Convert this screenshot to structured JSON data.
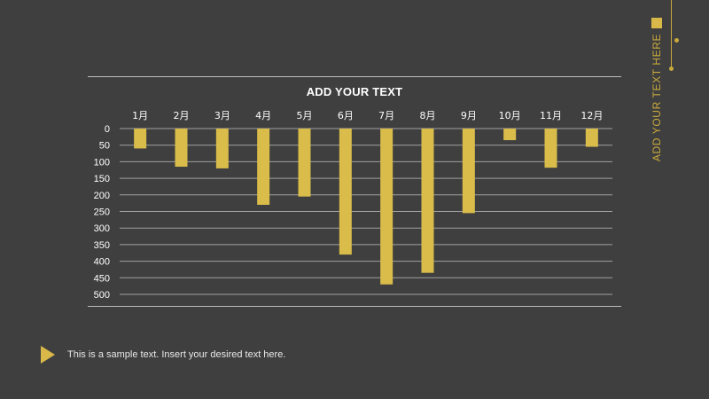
{
  "colors": {
    "background": "#3f3f3f",
    "bar": "#d9bc4a",
    "gridline": "#a0a0a0",
    "accent": "#c8a93c",
    "text": "#ffffff"
  },
  "side_title": "ADD YOUR TEXT HERE",
  "footer": {
    "icon": "play-triangle-icon",
    "text": "This is a sample text. Insert your desired text here."
  },
  "chart_data": {
    "type": "bar",
    "title": "ADD YOUR TEXT",
    "categories": [
      "1月",
      "2月",
      "3月",
      "4月",
      "5月",
      "6月",
      "7月",
      "8月",
      "9月",
      "10月",
      "11月",
      "12月"
    ],
    "values": [
      60,
      115,
      120,
      230,
      205,
      380,
      470,
      435,
      255,
      35,
      118,
      55
    ],
    "y_reversed": true,
    "ylim": [
      0,
      500
    ],
    "yticks": [
      0,
      50,
      100,
      150,
      200,
      250,
      300,
      350,
      400,
      450,
      500
    ],
    "grid": true,
    "category_axis_position": "top"
  }
}
